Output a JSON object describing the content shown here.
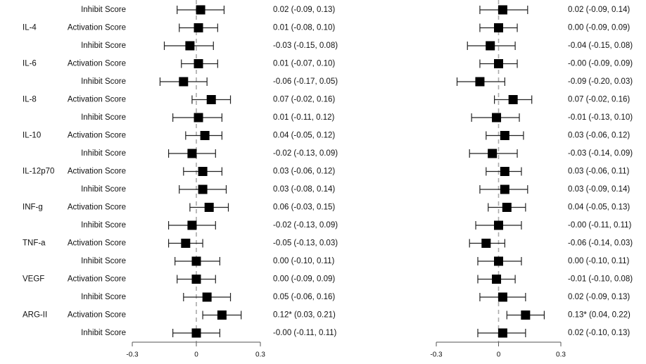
{
  "chart_data": {
    "type": "forest",
    "rows": [
      {
        "marker": "",
        "score": "Inhibit Score"
      },
      {
        "marker": "IL-4",
        "score": "Activation Score"
      },
      {
        "marker": "",
        "score": "Inhibit Score"
      },
      {
        "marker": "IL-6",
        "score": "Activation Score"
      },
      {
        "marker": "",
        "score": "Inhibit Score"
      },
      {
        "marker": "IL-8",
        "score": "Activation Score"
      },
      {
        "marker": "",
        "score": "Inhibit Score"
      },
      {
        "marker": "IL-10",
        "score": "Activation Score"
      },
      {
        "marker": "",
        "score": "Inhibit Score"
      },
      {
        "marker": "IL-12p70",
        "score": "Activation Score"
      },
      {
        "marker": "",
        "score": "Inhibit Score"
      },
      {
        "marker": "INF-g",
        "score": "Activation Score"
      },
      {
        "marker": "",
        "score": "Inhibit Score"
      },
      {
        "marker": "TNF-a",
        "score": "Activation Score"
      },
      {
        "marker": "",
        "score": "Inhibit Score"
      },
      {
        "marker": "VEGF",
        "score": "Activation Score"
      },
      {
        "marker": "",
        "score": "Inhibit Score"
      },
      {
        "marker": "ARG-II",
        "score": "Activation Score"
      },
      {
        "marker": "",
        "score": "Inhibit Score"
      }
    ],
    "panels": [
      {
        "xlim": [
          -0.3,
          0.3
        ],
        "ticks": [
          "-0.3",
          "0",
          "0.3"
        ],
        "estimates": [
          {
            "est": 0.02,
            "lo": -0.09,
            "hi": 0.13,
            "label": "0.02 (-0.09, 0.13)"
          },
          {
            "est": 0.01,
            "lo": -0.08,
            "hi": 0.1,
            "label": "0.01 (-0.08, 0.10)"
          },
          {
            "est": -0.03,
            "lo": -0.15,
            "hi": 0.08,
            "label": "-0.03 (-0.15, 0.08)"
          },
          {
            "est": 0.01,
            "lo": -0.07,
            "hi": 0.1,
            "label": "0.01 (-0.07, 0.10)"
          },
          {
            "est": -0.06,
            "lo": -0.17,
            "hi": 0.05,
            "label": "-0.06 (-0.17, 0.05)"
          },
          {
            "est": 0.07,
            "lo": -0.02,
            "hi": 0.16,
            "label": "0.07 (-0.02, 0.16)"
          },
          {
            "est": 0.01,
            "lo": -0.11,
            "hi": 0.12,
            "label": "0.01 (-0.11, 0.12)"
          },
          {
            "est": 0.04,
            "lo": -0.05,
            "hi": 0.12,
            "label": "0.04 (-0.05, 0.12)"
          },
          {
            "est": -0.02,
            "lo": -0.13,
            "hi": 0.09,
            "label": "-0.02 (-0.13, 0.09)"
          },
          {
            "est": 0.03,
            "lo": -0.06,
            "hi": 0.12,
            "label": "0.03 (-0.06, 0.12)"
          },
          {
            "est": 0.03,
            "lo": -0.08,
            "hi": 0.14,
            "label": "0.03 (-0.08, 0.14)"
          },
          {
            "est": 0.06,
            "lo": -0.03,
            "hi": 0.15,
            "label": "0.06 (-0.03, 0.15)"
          },
          {
            "est": -0.02,
            "lo": -0.13,
            "hi": 0.09,
            "label": "-0.02 (-0.13, 0.09)"
          },
          {
            "est": -0.05,
            "lo": -0.13,
            "hi": 0.03,
            "label": "-0.05 (-0.13, 0.03)"
          },
          {
            "est": 0.0,
            "lo": -0.1,
            "hi": 0.11,
            "label": "0.00 (-0.10, 0.11)"
          },
          {
            "est": 0.0,
            "lo": -0.09,
            "hi": 0.09,
            "label": "0.00 (-0.09, 0.09)"
          },
          {
            "est": 0.05,
            "lo": -0.06,
            "hi": 0.16,
            "label": "0.05 (-0.06, 0.16)"
          },
          {
            "est": 0.12,
            "lo": 0.03,
            "hi": 0.21,
            "label": "0.12* (0.03, 0.21)"
          },
          {
            "est": -0.0,
            "lo": -0.11,
            "hi": 0.11,
            "label": "-0.00 (-0.11, 0.11)"
          }
        ]
      },
      {
        "xlim": [
          -0.3,
          0.3
        ],
        "ticks": [
          "-0.3",
          "0",
          "0.3"
        ],
        "estimates": [
          {
            "est": 0.02,
            "lo": -0.09,
            "hi": 0.14,
            "label": "0.02 (-0.09, 0.14)"
          },
          {
            "est": 0.0,
            "lo": -0.09,
            "hi": 0.09,
            "label": "0.00 (-0.09, 0.09)"
          },
          {
            "est": -0.04,
            "lo": -0.15,
            "hi": 0.08,
            "label": "-0.04 (-0.15, 0.08)"
          },
          {
            "est": -0.0,
            "lo": -0.09,
            "hi": 0.09,
            "label": "-0.00 (-0.09, 0.09)"
          },
          {
            "est": -0.09,
            "lo": -0.2,
            "hi": 0.03,
            "label": "-0.09 (-0.20, 0.03)"
          },
          {
            "est": 0.07,
            "lo": -0.02,
            "hi": 0.16,
            "label": "0.07 (-0.02, 0.16)"
          },
          {
            "est": -0.01,
            "lo": -0.13,
            "hi": 0.1,
            "label": "-0.01 (-0.13, 0.10)"
          },
          {
            "est": 0.03,
            "lo": -0.06,
            "hi": 0.12,
            "label": "0.03 (-0.06, 0.12)"
          },
          {
            "est": -0.03,
            "lo": -0.14,
            "hi": 0.09,
            "label": "-0.03 (-0.14, 0.09)"
          },
          {
            "est": 0.03,
            "lo": -0.06,
            "hi": 0.11,
            "label": "0.03 (-0.06, 0.11)"
          },
          {
            "est": 0.03,
            "lo": -0.09,
            "hi": 0.14,
            "label": "0.03 (-0.09, 0.14)"
          },
          {
            "est": 0.04,
            "lo": -0.05,
            "hi": 0.13,
            "label": "0.04 (-0.05, 0.13)"
          },
          {
            "est": -0.0,
            "lo": -0.11,
            "hi": 0.11,
            "label": "-0.00 (-0.11, 0.11)"
          },
          {
            "est": -0.06,
            "lo": -0.14,
            "hi": 0.03,
            "label": "-0.06 (-0.14, 0.03)"
          },
          {
            "est": 0.0,
            "lo": -0.1,
            "hi": 0.11,
            "label": "0.00 (-0.10, 0.11)"
          },
          {
            "est": -0.01,
            "lo": -0.1,
            "hi": 0.08,
            "label": "-0.01 (-0.10, 0.08)"
          },
          {
            "est": 0.02,
            "lo": -0.09,
            "hi": 0.13,
            "label": "0.02 (-0.09, 0.13)"
          },
          {
            "est": 0.13,
            "lo": 0.04,
            "hi": 0.22,
            "label": "0.13* (0.04, 0.22)"
          },
          {
            "est": 0.02,
            "lo": -0.1,
            "hi": 0.13,
            "label": "0.02 (-0.10, 0.13)"
          }
        ]
      }
    ],
    "grid": false,
    "reference_line": 0,
    "colors": {
      "marker": "#000000",
      "reference_line": "#aaaaaa",
      "axis": "#555555"
    }
  }
}
